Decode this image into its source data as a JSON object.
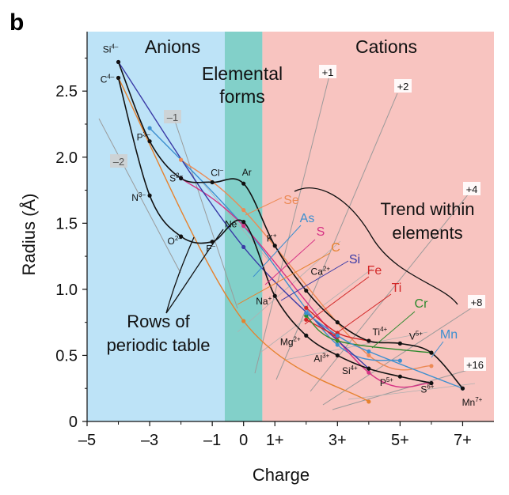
{
  "panel_letter": "b",
  "chart_data": {
    "type": "line",
    "xlabel": "Charge",
    "ylabel": "Radius (Å)",
    "xlim": [
      -5,
      8
    ],
    "ylim": [
      0,
      2.95
    ],
    "x_ticks": [
      {
        "value": -5,
        "label": "–5"
      },
      {
        "value": -3,
        "label": "–3"
      },
      {
        "value": -1,
        "label": "–1"
      },
      {
        "value": 0,
        "label": "0"
      },
      {
        "value": 1,
        "label": "1+"
      },
      {
        "value": 3,
        "label": "3+"
      },
      {
        "value": 5,
        "label": "5+"
      },
      {
        "value": 7,
        "label": "7+"
      }
    ],
    "y_ticks": [
      {
        "value": 0,
        "label": "0"
      },
      {
        "value": 0.5,
        "label": "0.5"
      },
      {
        "value": 1.0,
        "label": "1.0"
      },
      {
        "value": 1.5,
        "label": "1.5"
      },
      {
        "value": 2.0,
        "label": "2.0"
      },
      {
        "value": 2.5,
        "label": "2.5"
      }
    ],
    "regions": [
      {
        "label": "Anions",
        "x_from": -5,
        "x_to": -0.6,
        "color": "#bde3f7"
      },
      {
        "label": "Elemental forms",
        "label_lines": [
          "Elemental",
          "forms"
        ],
        "x_from": -0.6,
        "x_to": 0.6,
        "color": "#82d0c9"
      },
      {
        "label": "Cations",
        "x_from": 0.6,
        "x_to": 8,
        "color": "#f8c4c0"
      }
    ],
    "row_series": [
      {
        "points": [
          {
            "x": -4,
            "y": 2.72,
            "label": "Si",
            "sup": "4–"
          },
          {
            "x": -3,
            "y": 2.12,
            "label": "P",
            "sup": "3–"
          },
          {
            "x": -2,
            "y": 1.84,
            "label": "S",
            "sup": "2–"
          },
          {
            "x": -1,
            "y": 1.81,
            "label": "Cl",
            "sup": "–"
          },
          {
            "x": 0,
            "y": 1.8,
            "label": "Ar",
            "sup": ""
          },
          {
            "x": 1,
            "y": 1.33,
            "label": "K",
            "sup": "+"
          },
          {
            "x": 2,
            "y": 0.99,
            "label": "Ca",
            "sup": "2+"
          },
          {
            "x": 3,
            "y": 0.75,
            "label": "",
            "sup": ""
          },
          {
            "x": 4,
            "y": 0.61,
            "label": "Ti",
            "sup": "4+"
          },
          {
            "x": 5,
            "y": 0.59,
            "label": "V",
            "sup": "5+"
          },
          {
            "x": 6,
            "y": 0.52,
            "label": "",
            "sup": ""
          },
          {
            "x": 7,
            "y": 0.25,
            "label": "Mn",
            "sup": "7+"
          }
        ]
      },
      {
        "points": [
          {
            "x": -4,
            "y": 2.6,
            "label": "C",
            "sup": "4–"
          },
          {
            "x": -3,
            "y": 1.71,
            "label": "N",
            "sup": "3–"
          },
          {
            "x": -2,
            "y": 1.4,
            "label": "O",
            "sup": "2–"
          },
          {
            "x": -1,
            "y": 1.36,
            "label": "F",
            "sup": "–"
          },
          {
            "x": 0,
            "y": 1.51,
            "label": "Ne",
            "sup": ""
          },
          {
            "x": 1,
            "y": 0.95,
            "label": "Na",
            "sup": "+"
          },
          {
            "x": 2,
            "y": 0.65,
            "label": "Mg",
            "sup": "2+"
          },
          {
            "x": 3,
            "y": 0.5,
            "label": "Al",
            "sup": "3+"
          },
          {
            "x": 4,
            "y": 0.4,
            "label": "Si",
            "sup": "4+"
          },
          {
            "x": 5,
            "y": 0.34,
            "label": "P",
            "sup": "5+"
          },
          {
            "x": 6,
            "y": 0.29,
            "label": "S",
            "sup": "6+"
          }
        ]
      }
    ],
    "element_series": [
      {
        "name": "Se",
        "color": "#ec8a55",
        "points": [
          [
            -2,
            1.98
          ],
          [
            0,
            1.6
          ],
          [
            4,
            0.5
          ],
          [
            6,
            0.42
          ]
        ]
      },
      {
        "name": "As",
        "color": "#3d8fcf",
        "points": [
          [
            -3,
            2.22
          ],
          [
            0,
            1.48
          ],
          [
            3,
            0.58
          ],
          [
            5,
            0.46
          ]
        ]
      },
      {
        "name": "S",
        "color": "#d63284",
        "points": [
          [
            -2,
            1.84
          ],
          [
            0,
            1.48
          ],
          [
            4,
            0.37
          ],
          [
            6,
            0.29
          ]
        ]
      },
      {
        "name": "C",
        "color": "#e6822e",
        "points": [
          [
            -4,
            2.6
          ],
          [
            0,
            0.76
          ],
          [
            4,
            0.15
          ]
        ]
      },
      {
        "name": "Si",
        "color": "#3a3aa6",
        "points": [
          [
            -4,
            2.72
          ],
          [
            0,
            1.32
          ],
          [
            4,
            0.4
          ]
        ]
      },
      {
        "name": "Fe",
        "color": "#d22727",
        "points": [
          [
            2,
            0.77
          ],
          [
            3,
            0.64
          ]
        ]
      },
      {
        "name": "Ti",
        "color": "#d22727",
        "points": [
          [
            2,
            0.86
          ],
          [
            3,
            0.67
          ],
          [
            4,
            0.61
          ]
        ]
      },
      {
        "name": "Cr",
        "color": "#2e8a2e",
        "points": [
          [
            2,
            0.8
          ],
          [
            3,
            0.61
          ],
          [
            6,
            0.52
          ]
        ]
      },
      {
        "name": "Mn",
        "color": "#3d8fcf",
        "points": [
          [
            2,
            0.82
          ],
          [
            3,
            0.65
          ],
          [
            4,
            0.53
          ],
          [
            7,
            0.25
          ]
        ]
      }
    ],
    "element_labels": [
      {
        "name": "Se",
        "color": "#ec8a55"
      },
      {
        "name": "As",
        "color": "#3d8fcf"
      },
      {
        "name": "S",
        "color": "#d63284"
      },
      {
        "name": "C",
        "color": "#e6822e"
      },
      {
        "name": "Si",
        "color": "#3a3aa6"
      },
      {
        "name": "Fe",
        "color": "#d22727"
      },
      {
        "name": "Ti",
        "color": "#d22727"
      },
      {
        "name": "Cr",
        "color": "#2e8a2e"
      },
      {
        "name": "Mn",
        "color": "#3d8fcf"
      }
    ],
    "oxidation_guides": [
      "+1",
      "+2",
      "+4",
      "+8",
      "+16",
      "–1",
      "–2"
    ],
    "annotations": [
      {
        "text": "Trend within elements",
        "lines": [
          "Trend within",
          "elements"
        ]
      },
      {
        "text": "Rows of periodic table",
        "lines": [
          "Rows of",
          "periodic table"
        ]
      }
    ]
  }
}
